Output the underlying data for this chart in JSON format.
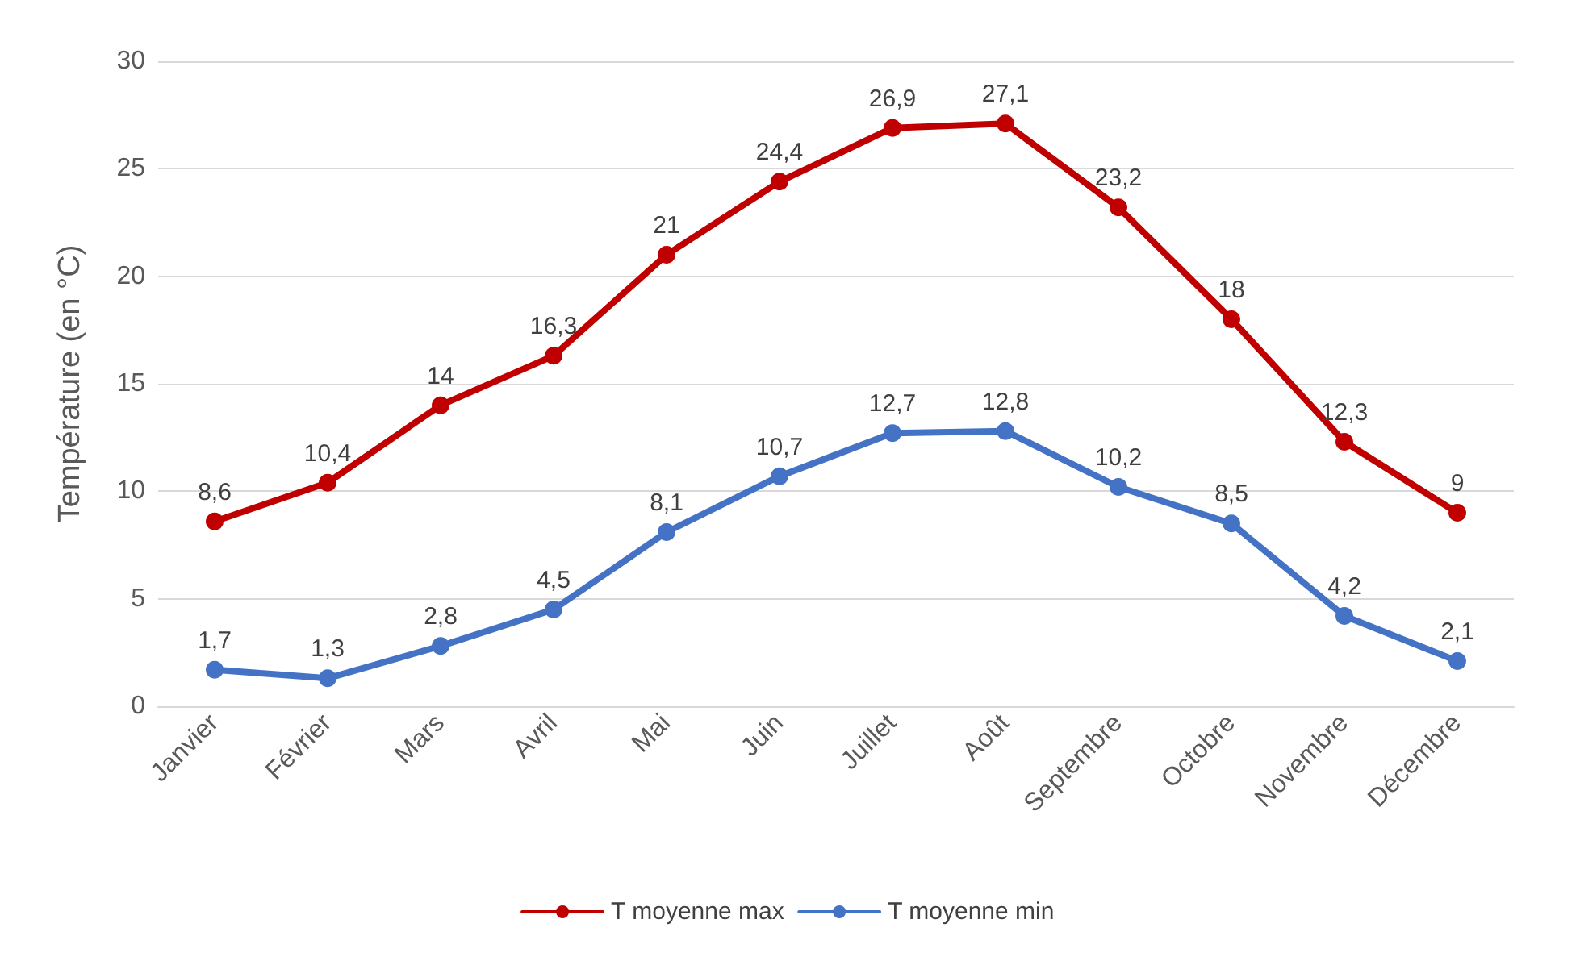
{
  "chart_data": {
    "type": "line",
    "ylabel": "Température (en °C)",
    "categories": [
      "Janvier",
      "Février",
      "Mars",
      "Avril",
      "Mai",
      "Juin",
      "Juillet",
      "Août",
      "Septembre",
      "Octobre",
      "Novembre",
      "Décembre"
    ],
    "series": [
      {
        "name": "T moyenne max",
        "color": "#c00000",
        "values": [
          8.6,
          10.4,
          14,
          16.3,
          21,
          24.4,
          26.9,
          27.1,
          23.2,
          18,
          12.3,
          9
        ],
        "value_labels": [
          "8,6",
          "10,4",
          "14",
          "16,3",
          "21",
          "24,4",
          "26,9",
          "27,1",
          "23,2",
          "18",
          "12,3",
          "9"
        ]
      },
      {
        "name": "T moyenne min",
        "color": "#4472c4",
        "values": [
          1.7,
          1.3,
          2.8,
          4.5,
          8.1,
          10.7,
          12.7,
          12.8,
          10.2,
          8.5,
          4.2,
          2.1
        ],
        "value_labels": [
          "1,7",
          "1,3",
          "2,8",
          "4,5",
          "8,1",
          "10,7",
          "12,7",
          "12,8",
          "10,2",
          "8,5",
          "4,2",
          "2,1"
        ]
      }
    ],
    "ylim": [
      0,
      30
    ],
    "yticks": [
      0,
      5,
      10,
      15,
      20,
      25,
      30
    ],
    "grid": "y",
    "legend": "bottom",
    "marker": "circle",
    "line_style": "solid"
  }
}
